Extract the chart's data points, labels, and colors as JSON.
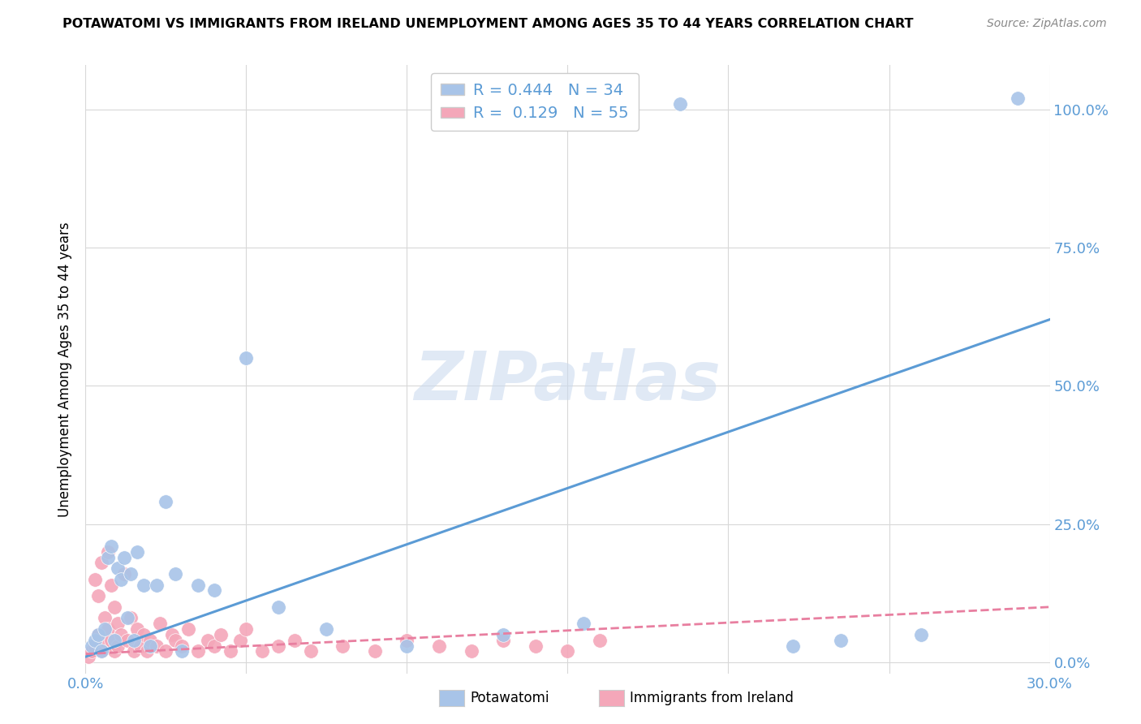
{
  "title": "POTAWATOMI VS IMMIGRANTS FROM IRELAND UNEMPLOYMENT AMONG AGES 35 TO 44 YEARS CORRELATION CHART",
  "source": "Source: ZipAtlas.com",
  "ylabel_label": "Unemployment Among Ages 35 to 44 years",
  "xlim": [
    0.0,
    0.3
  ],
  "ylim": [
    -0.02,
    1.08
  ],
  "legend_blue_r": "0.444",
  "legend_blue_n": "34",
  "legend_pink_r": "0.129",
  "legend_pink_n": "55",
  "blue_color": "#a8c4e8",
  "pink_color": "#f4a7b9",
  "blue_line_color": "#5b9bd5",
  "pink_line_color": "#e87fa0",
  "watermark_text": "ZIPatlas",
  "blue_line_x": [
    0.0,
    0.3
  ],
  "blue_line_y": [
    0.01,
    0.62
  ],
  "pink_line_x": [
    0.0,
    0.3
  ],
  "pink_line_y": [
    0.015,
    0.1
  ],
  "blue_x": [
    0.002,
    0.003,
    0.004,
    0.005,
    0.006,
    0.007,
    0.008,
    0.009,
    0.01,
    0.011,
    0.012,
    0.013,
    0.014,
    0.015,
    0.016,
    0.018,
    0.02,
    0.022,
    0.025,
    0.028,
    0.03,
    0.035,
    0.04,
    0.05,
    0.06,
    0.075,
    0.1,
    0.13,
    0.155,
    0.185,
    0.22,
    0.235,
    0.26,
    0.29
  ],
  "blue_y": [
    0.03,
    0.04,
    0.05,
    0.02,
    0.06,
    0.19,
    0.21,
    0.04,
    0.17,
    0.15,
    0.19,
    0.08,
    0.16,
    0.04,
    0.2,
    0.14,
    0.03,
    0.14,
    0.29,
    0.16,
    0.02,
    0.14,
    0.13,
    0.55,
    0.1,
    0.06,
    0.03,
    0.05,
    0.07,
    1.01,
    0.03,
    0.04,
    0.05,
    1.02
  ],
  "pink_x": [
    0.001,
    0.002,
    0.003,
    0.003,
    0.004,
    0.004,
    0.005,
    0.005,
    0.006,
    0.006,
    0.007,
    0.007,
    0.008,
    0.008,
    0.009,
    0.009,
    0.01,
    0.01,
    0.011,
    0.012,
    0.013,
    0.014,
    0.015,
    0.016,
    0.017,
    0.018,
    0.019,
    0.02,
    0.022,
    0.023,
    0.025,
    0.027,
    0.028,
    0.03,
    0.032,
    0.035,
    0.038,
    0.04,
    0.042,
    0.045,
    0.048,
    0.05,
    0.055,
    0.06,
    0.065,
    0.07,
    0.08,
    0.09,
    0.1,
    0.11,
    0.12,
    0.13,
    0.14,
    0.15,
    0.16
  ],
  "pink_y": [
    0.01,
    0.02,
    0.15,
    0.03,
    0.05,
    0.12,
    0.02,
    0.18,
    0.04,
    0.08,
    0.2,
    0.06,
    0.04,
    0.14,
    0.02,
    0.1,
    0.07,
    0.03,
    0.05,
    0.16,
    0.04,
    0.08,
    0.02,
    0.06,
    0.03,
    0.05,
    0.02,
    0.04,
    0.03,
    0.07,
    0.02,
    0.05,
    0.04,
    0.03,
    0.06,
    0.02,
    0.04,
    0.03,
    0.05,
    0.02,
    0.04,
    0.06,
    0.02,
    0.03,
    0.04,
    0.02,
    0.03,
    0.02,
    0.04,
    0.03,
    0.02,
    0.04,
    0.03,
    0.02,
    0.04
  ]
}
